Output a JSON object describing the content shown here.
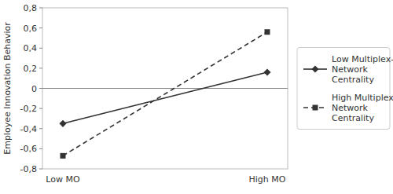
{
  "chart_data": {
    "type": "line",
    "categories": [
      "Low MO",
      "High MO"
    ],
    "series": [
      {
        "name": "Low Multiplex-\nNetwork\nCentrality",
        "color": "#333333",
        "values": [
          -0.35,
          0.16
        ],
        "marker": "diamond",
        "line_style": "solid"
      },
      {
        "name": "High Multiplex-\nNetwork\nCentrality",
        "color": "#333333",
        "values": [
          -0.67,
          0.56
        ],
        "marker": "square",
        "line_style": "dashed"
      }
    ],
    "y_label": "Employee Innovation Behavior",
    "ylim": [
      -0.8,
      0.8
    ],
    "yticks": [
      {
        "value": -0.8,
        "label": "-0,8"
      },
      {
        "value": -0.6,
        "label": "-0,6"
      },
      {
        "value": -0.4,
        "label": "-0,4"
      },
      {
        "value": -0.2,
        "label": "-0,2"
      },
      0,
      {
        "value": 0.2,
        "label": "0,2"
      },
      {
        "value": 0.4,
        "label": "0,4"
      },
      {
        "value": 0.6,
        "label": "0,6"
      },
      {
        "value": 0.8,
        "label": "0,8"
      }
    ],
    "grid": false,
    "legend": "right"
  }
}
